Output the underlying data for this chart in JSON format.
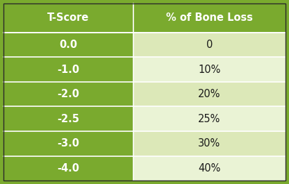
{
  "header": [
    "T-Score",
    "% of Bone Loss"
  ],
  "rows": [
    [
      "0.0",
      "0"
    ],
    [
      "-1.0",
      "10%"
    ],
    [
      "-2.0",
      "20%"
    ],
    [
      "-2.5",
      "25%"
    ],
    [
      "-3.0",
      "30%"
    ],
    [
      "-4.0",
      "40%"
    ]
  ],
  "header_bg": "#7aaa2e",
  "col1_bg": "#7aaa2e",
  "col2_bg_even": "#dce8b8",
  "col2_bg_odd": "#eaf3d5",
  "header_text_color": "#ffffff",
  "col1_text_color": "#ffffff",
  "col2_text_color": "#1a1a1a",
  "separator_color": "#ffffff",
  "outer_bg": "#3a3a3a",
  "figsize": [
    4.16,
    2.65
  ],
  "dpi": 100,
  "col_split": 0.46
}
